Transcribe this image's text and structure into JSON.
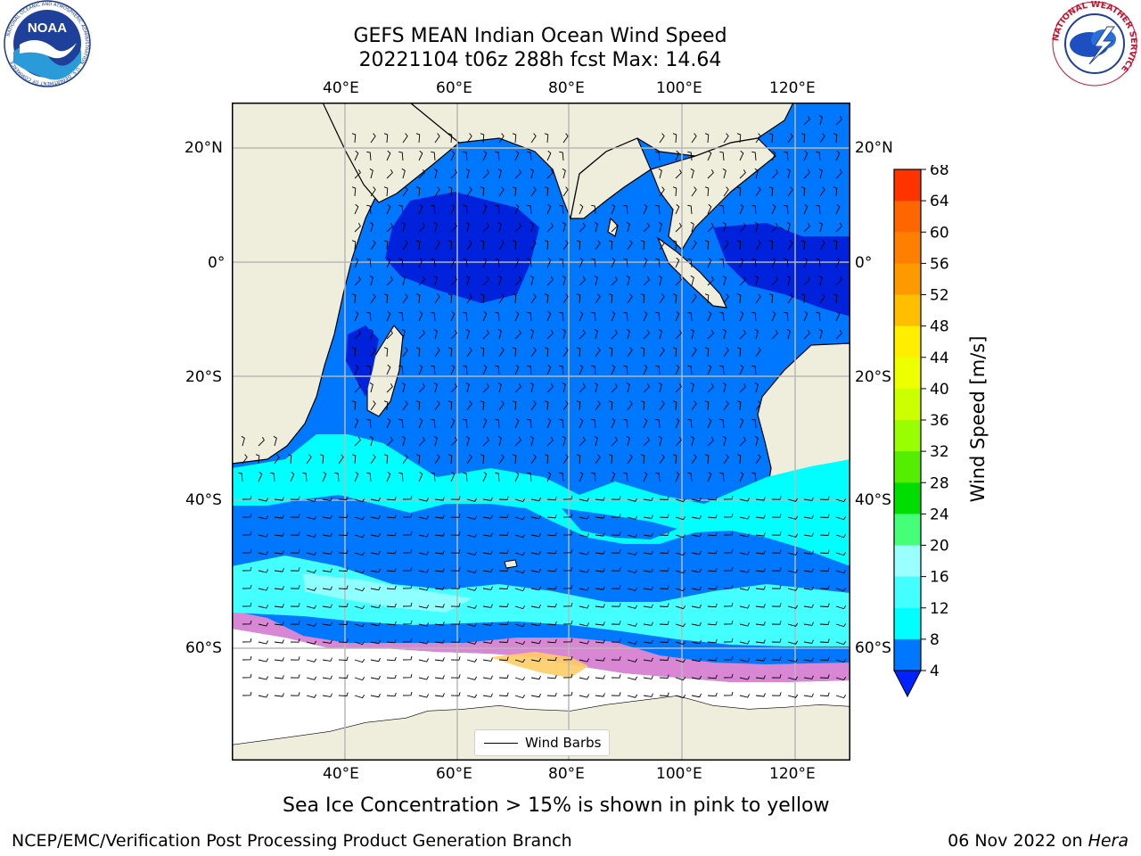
{
  "title": {
    "line1": "GEFS MEAN Indian Ocean Wind Speed",
    "line2": "20221104 t06z 288h fcst   Max: 14.64"
  },
  "map": {
    "x_labels": [
      "40°E",
      "60°E",
      "80°E",
      "100°E",
      "120°E"
    ],
    "y_labels": [
      "20°N",
      "0°",
      "20°S",
      "40°S",
      "60°S"
    ],
    "land_color": "#efeedd",
    "legend_label": "Wind Barbs"
  },
  "colorbar": {
    "label": "Wind Speed [m/s]",
    "ticks": [
      "68",
      "64",
      "60",
      "56",
      "52",
      "48",
      "44",
      "40",
      "36",
      "32",
      "28",
      "24",
      "20",
      "16",
      "12",
      "8",
      "4"
    ],
    "colors": [
      "#ff0000",
      "#ff3300",
      "#ff6600",
      "#ff8000",
      "#ff9900",
      "#ffbf00",
      "#ffee00",
      "#eeff00",
      "#ccff00",
      "#99ff00",
      "#55ee00",
      "#00dd00",
      "#44ff77",
      "#99ffff",
      "#44ffff",
      "#00ffff",
      "#0077ff"
    ],
    "under_color": "#0022ff"
  },
  "caption": "Sea Ice Concentration > 15% is shown in pink to yellow",
  "footer": {
    "left": "NCEP/EMC/Verification Post Processing Product Generation Branch",
    "date": "06 Nov 2022 on ",
    "machine": "Hera"
  },
  "logos": {
    "noaa_text": "NOAA",
    "noaa_ring": "NATIONAL OCEANIC AND ATMOSPHERIC ADMINISTRATION · U.S. DEPARTMENT OF COMMERCE",
    "nws_ring": "NATIONAL WEATHER SERVICE"
  }
}
